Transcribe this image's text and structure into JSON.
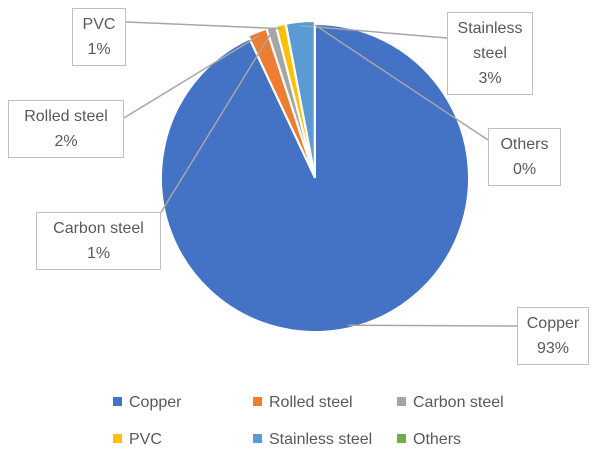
{
  "chart_data": {
    "type": "pie",
    "categories": [
      "Copper",
      "Rolled steel",
      "Carbon steel",
      "PVC",
      "Stainless steel",
      "Others"
    ],
    "values": [
      93,
      2,
      1,
      1,
      3,
      0
    ],
    "value_labels": [
      "93%",
      "2%",
      "1%",
      "1%",
      "3%",
      "0%"
    ],
    "colors": [
      "#4472c4",
      "#ed7d31",
      "#a5a5a5",
      "#ffc000",
      "#5b9bd5",
      "#70ad47"
    ],
    "legend": "bottom"
  }
}
